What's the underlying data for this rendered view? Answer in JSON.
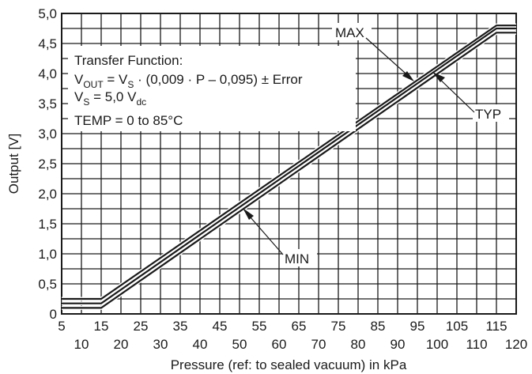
{
  "chart_data": {
    "type": "line",
    "xlabel": "Pressure (ref: to sealed vacuum) in kPa",
    "ylabel": "Output [V]",
    "xlim": [
      5,
      120
    ],
    "ylim": [
      0,
      5.0
    ],
    "x_ticks_top_row": [
      "5",
      "15",
      "25",
      "35",
      "45",
      "55",
      "65",
      "75",
      "85",
      "95",
      "105",
      "115"
    ],
    "x_ticks_bottom_row": [
      "10",
      "20",
      "30",
      "40",
      "50",
      "60",
      "70",
      "80",
      "90",
      "100",
      "110",
      "120"
    ],
    "y_ticks": [
      "0",
      "0,5",
      "1,0",
      "1,5",
      "2,0",
      "2,5",
      "3,0",
      "3,5",
      "4,0",
      "4,5",
      "5,0"
    ],
    "grid": true,
    "series": [
      {
        "name": "MAX",
        "x": [
          5,
          15,
          115,
          120
        ],
        "y": [
          0.25,
          0.25,
          4.8,
          4.8
        ]
      },
      {
        "name": "TYP",
        "x": [
          5,
          15,
          115,
          120
        ],
        "y": [
          0.175,
          0.175,
          4.75,
          4.75
        ]
      },
      {
        "name": "MIN",
        "x": [
          5,
          15,
          115,
          120
        ],
        "y": [
          0.1,
          0.1,
          4.68,
          4.68
        ]
      }
    ],
    "annotation": {
      "title": "Transfer Function:",
      "line2": {
        "a": "V",
        "a_sub": "OUT",
        "b": " = V",
        "b_sub": "S",
        "c": " · (0,009 · P – 0,095) ± Error"
      },
      "line3": {
        "a": "V",
        "a_sub": "S",
        "b": " = 5,0 V",
        "b_sub": "dc"
      },
      "line4": "TEMP = 0 to 85°C"
    },
    "labels": {
      "max": "MAX",
      "typ": "TYP",
      "min": "MIN"
    }
  }
}
